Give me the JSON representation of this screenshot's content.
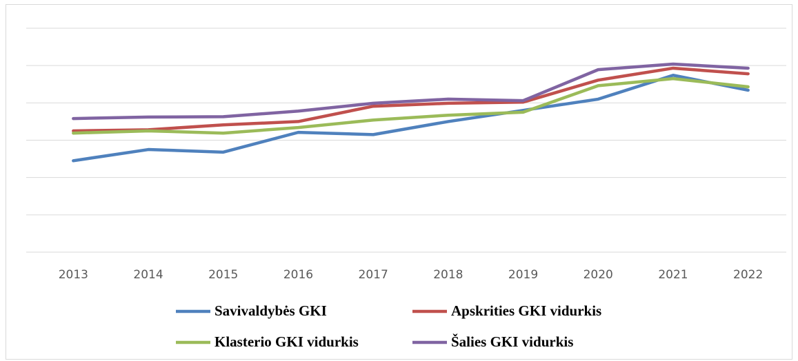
{
  "chart_data": {
    "type": "line",
    "categories": [
      "2013",
      "2014",
      "2015",
      "2016",
      "2017",
      "2018",
      "2019",
      "2020",
      "2021",
      "2022"
    ],
    "series": [
      {
        "name": "Savivaldybės GKI",
        "color": "#4f81bd",
        "values": [
          2.45,
          2.75,
          2.68,
          3.21,
          3.15,
          3.5,
          3.8,
          4.1,
          4.74,
          4.34
        ]
      },
      {
        "name": "Apskrities GKI vidurkis",
        "color": "#c0504d",
        "values": [
          3.25,
          3.28,
          3.41,
          3.5,
          3.91,
          3.99,
          4.02,
          4.61,
          4.93,
          4.78
        ]
      },
      {
        "name": "Klasterio GKI vidurkis",
        "color": "#9bbb59",
        "values": [
          3.19,
          3.25,
          3.19,
          3.34,
          3.54,
          3.67,
          3.75,
          4.46,
          4.65,
          4.43
        ]
      },
      {
        "name": "Šalies GKI vidurkis",
        "color": "#8064a2",
        "values": [
          3.58,
          3.62,
          3.63,
          3.78,
          3.99,
          4.1,
          4.06,
          4.89,
          5.04,
          4.93
        ]
      }
    ],
    "ylim": [
      0,
      6
    ],
    "yticks": [
      0,
      1,
      2,
      3,
      4,
      5,
      6
    ],
    "grid": true,
    "legend": "bottom"
  }
}
